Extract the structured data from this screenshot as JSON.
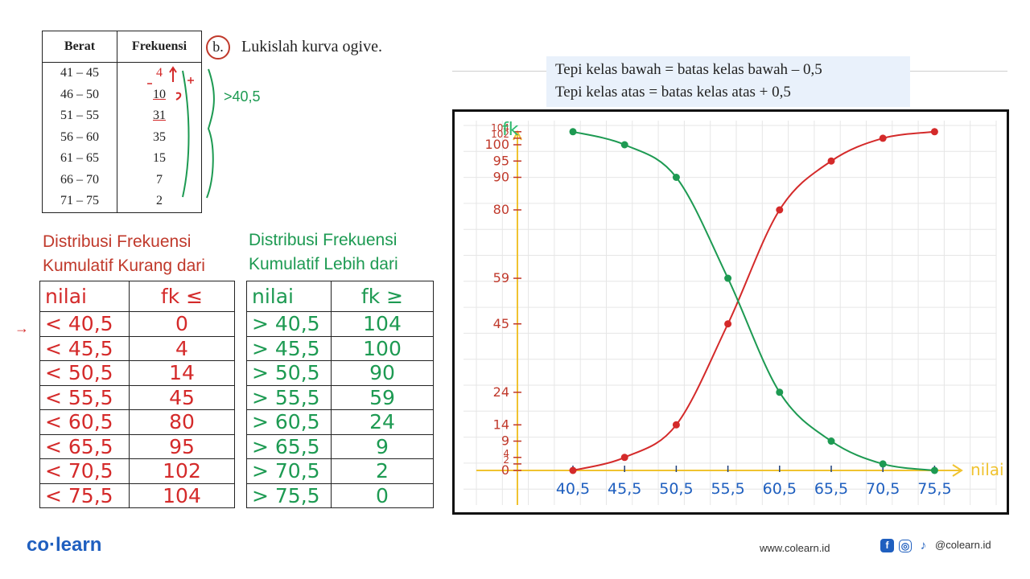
{
  "freq_table": {
    "headers": [
      "Berat",
      "Frekuensi"
    ],
    "rows": [
      {
        "berat": "41 – 45",
        "frek": "4"
      },
      {
        "berat": "46 – 50",
        "frek": "10"
      },
      {
        "berat": "51 – 55",
        "frek": "31"
      },
      {
        "berat": "56 – 60",
        "frek": "35"
      },
      {
        "berat": "61 – 65",
        "frek": "15"
      },
      {
        "berat": "66 – 70",
        "frek": "7"
      },
      {
        "berat": "71 – 75",
        "frek": "2"
      }
    ],
    "note": ">40,5"
  },
  "question": {
    "number": "b.",
    "text": "Lukislah kurva ogive."
  },
  "formula": {
    "line1": "Tepi kelas bawah = batas kelas bawah – 0,5",
    "line2": "Tepi kelas atas    = batas kelas atas + 0,5"
  },
  "kurang_dari": {
    "title1": "Distribusi Frekuensi",
    "title2": "Kumulatif Kurang dari",
    "headers": [
      "nilai",
      "fk ≤"
    ],
    "rows": [
      [
        "< 40,5",
        "0"
      ],
      [
        "< 45,5",
        "4"
      ],
      [
        "< 50,5",
        "14"
      ],
      [
        "< 55,5",
        "45"
      ],
      [
        "< 60,5",
        "80"
      ],
      [
        "< 65,5",
        "95"
      ],
      [
        "< 70,5",
        "102"
      ],
      [
        "< 75,5",
        "104"
      ]
    ]
  },
  "lebih_dari": {
    "title1": "Distribusi Frekuensi",
    "title2": "Kumulatif Lebih dari",
    "headers": [
      "nilai",
      "fk ≥"
    ],
    "rows": [
      [
        "> 40,5",
        "104"
      ],
      [
        "> 45,5",
        "100"
      ],
      [
        "> 50,5",
        "90"
      ],
      [
        "> 55,5",
        "59"
      ],
      [
        "> 60,5",
        "24"
      ],
      [
        "> 65,5",
        "9"
      ],
      [
        "> 70,5",
        "2"
      ],
      [
        "> 75,5",
        "0"
      ]
    ]
  },
  "chart_data": {
    "type": "line",
    "xlabel": "nilai",
    "ylabel": "fk",
    "x": [
      40.5,
      45.5,
      50.5,
      55.5,
      60.5,
      65.5,
      70.5,
      75.5
    ],
    "x_tick_labels": [
      "40,5",
      "45,5",
      "50,5",
      "55,5",
      "60,5",
      "65,5",
      "70,5",
      "75,5"
    ],
    "y_ticks": [
      0,
      2,
      4,
      9,
      14,
      24,
      45,
      59,
      80,
      90,
      95,
      100,
      102,
      104
    ],
    "y_tick_labels": [
      "0",
      "2",
      "4",
      "9",
      "14",
      "24",
      "45",
      "59",
      "80",
      "90",
      "95",
      "100",
      "102",
      "104"
    ],
    "series": [
      {
        "values": [
          0,
          4,
          14,
          45,
          80,
          95,
          102,
          104
        ],
        "color": "#d42a2a"
      },
      {
        "values": [
          104,
          100,
          90,
          59,
          24,
          9,
          2,
          0
        ],
        "color": "#1d9a52"
      }
    ],
    "axis_color": "#f0c330",
    "grid": true
  },
  "footer": {
    "logo": "co·learn",
    "url": "www.colearn.id",
    "social": "@colearn.id",
    "icons": [
      "facebook-icon",
      "instagram-icon",
      "tiktok-icon"
    ]
  }
}
